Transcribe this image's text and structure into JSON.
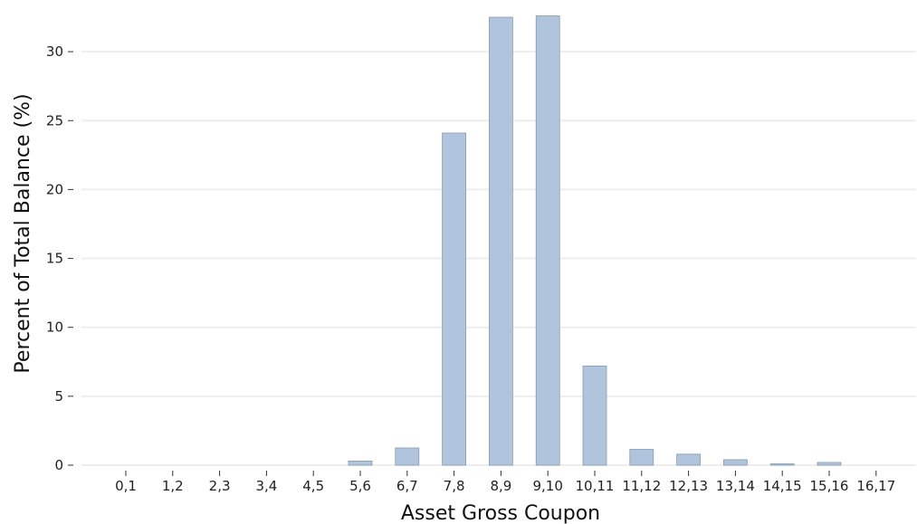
{
  "chart_data": {
    "type": "bar",
    "title": "",
    "xlabel": "Asset Gross Coupon",
    "ylabel": "Percent of Total Balance (%)",
    "categories": [
      "0,1",
      "1,2",
      "2,3",
      "3,4",
      "4,5",
      "5,6",
      "6,7",
      "7,8",
      "8,9",
      "9,10",
      "10,11",
      "11,12",
      "12,13",
      "13,14",
      "14,15",
      "15,16",
      "16,17"
    ],
    "values": [
      0,
      0,
      0,
      0,
      0,
      0.3,
      1.25,
      24.1,
      32.5,
      32.6,
      7.2,
      1.15,
      0.8,
      0.4,
      0.1,
      0.2,
      0
    ],
    "ylim": [
      0,
      33
    ],
    "yticks": [
      0,
      5,
      10,
      15,
      20,
      25,
      30
    ],
    "grid": "horizontal",
    "bar_color": "#b0c4de",
    "bar_edge_color": "#8a9bb0",
    "grid_color": "#eeeeee"
  }
}
